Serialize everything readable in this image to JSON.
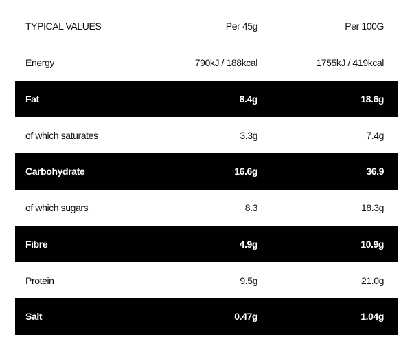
{
  "table": {
    "header": [
      "TYPICAL VALUES",
      "Per 45g",
      "Per 100G"
    ],
    "rows": [
      [
        "Energy",
        "790kJ / 188kcal",
        "1755kJ / 419kcal"
      ],
      [
        "Fat",
        "8.4g",
        "18.6g"
      ],
      [
        "of which saturates",
        "3.3g",
        "7.4g"
      ],
      [
        "Carbohydrate",
        "16.6g",
        "36.9"
      ],
      [
        "of which sugars",
        "8.3",
        "18.3g"
      ],
      [
        "Fibre",
        "4.9g",
        "10.9g"
      ],
      [
        "Protein",
        "9.5g",
        "21.0g"
      ],
      [
        "Salt",
        "0.47g",
        "1.04g"
      ]
    ]
  }
}
